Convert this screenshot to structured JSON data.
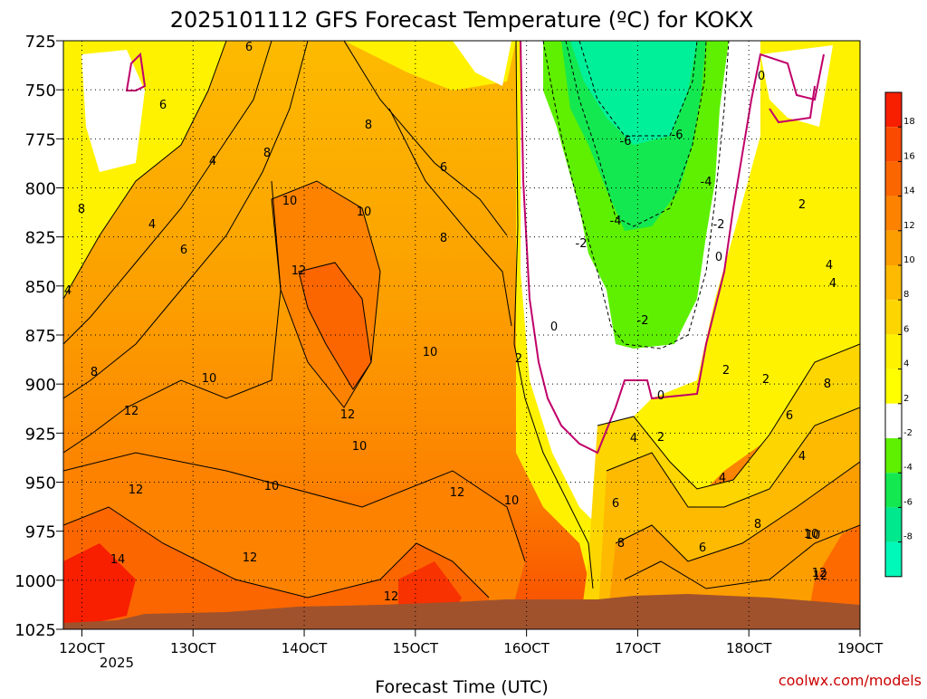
{
  "title": "2025101112 GFS Forecast Temperature (ºC) for KOKX",
  "xlabel": "Forecast Time (UTC)",
  "credit": "coolwx.com/models",
  "chart_data": {
    "type": "heatmap",
    "title": "2025101112 GFS Forecast Temperature (ºC) for KOKX",
    "xlabel": "Forecast Time (UTC)",
    "ylabel": "",
    "x_ticks": [
      "12OCT",
      "13OCT",
      "14OCT",
      "15OCT",
      "16OCT",
      "17OCT",
      "18OCT",
      "19OCT"
    ],
    "x_sublabel": "2025",
    "y_ticks": [
      725,
      750,
      775,
      800,
      825,
      850,
      875,
      900,
      925,
      950,
      975,
      1000,
      1025
    ],
    "ylim": [
      725,
      1025
    ],
    "y_inverted": true,
    "grid": true,
    "colorbar": {
      "labels": [
        "18",
        "16",
        "14",
        "12",
        "10",
        "8",
        "6",
        "4",
        "2",
        "-2",
        "-4",
        "-6",
        "-8"
      ],
      "colors": [
        "#f81e00",
        "#fa4a00",
        "#fb6600",
        "#fc8200",
        "#fc9e00",
        "#fdba00",
        "#fdd500",
        "#fef200",
        "#ffff00",
        "#ffffff",
        "#5ef000",
        "#14e850",
        "#00e88e",
        "#00f8b8"
      ]
    },
    "contour_labels": [
      "6",
      "4",
      "4",
      "6",
      "8",
      "8",
      "10",
      "10",
      "12",
      "8",
      "6",
      "10",
      "4",
      "8",
      "10",
      "12",
      "12",
      "10",
      "10",
      "12",
      "14",
      "12",
      "10",
      "12",
      "12",
      "8",
      "6",
      "2",
      "0",
      "-2",
      "-6",
      "-6",
      "-4",
      "-4",
      "-2",
      "-2",
      "0",
      "0",
      "2",
      "0",
      "2",
      "4",
      "4",
      "2",
      "4",
      "6",
      "8",
      "6",
      "8",
      "10",
      "12",
      "4",
      "2",
      "4",
      "6",
      "8",
      "10",
      "12"
    ],
    "surface_color": "#a0522d"
  }
}
